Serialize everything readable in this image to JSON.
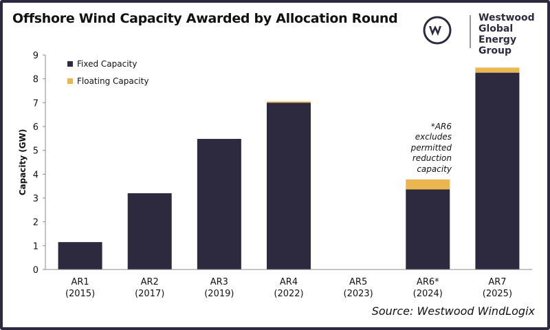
{
  "title": "Offshore Wind Capacity Awarded by Allocation Round",
  "logo": {
    "line1": "Westwood",
    "line2": "Global Energy",
    "line3": "Group"
  },
  "source": "Source: Westwood WindLogix",
  "annotation": [
    "*AR6",
    "excludes",
    "permitted",
    "reduction",
    "capacity"
  ],
  "colors": {
    "fixed": "#2d2a40",
    "floating": "#ebb54f",
    "frame": "#2d2a40"
  },
  "chart_data": {
    "type": "bar",
    "stacked": true,
    "title": "Offshore Wind Capacity Awarded by Allocation Round",
    "xlabel": "",
    "ylabel": "Capacity (GW)",
    "ylim": [
      0,
      9
    ],
    "yticks": [
      0,
      1,
      2,
      3,
      4,
      5,
      6,
      7,
      8,
      9
    ],
    "grid": false,
    "legend": "top-left",
    "categories": [
      [
        "AR1",
        "(2015)"
      ],
      [
        "AR2",
        "(2017)"
      ],
      [
        "AR3",
        "(2019)"
      ],
      [
        "AR4",
        "(2022)"
      ],
      [
        "AR5",
        "(2023)"
      ],
      [
        "AR6*",
        "(2024)"
      ],
      [
        "AR7",
        "(2025)"
      ]
    ],
    "series": [
      {
        "name": "Fixed Capacity",
        "values": [
          1.15,
          3.2,
          5.48,
          7.0,
          0,
          3.36,
          8.26
        ]
      },
      {
        "name": "Floating Capacity",
        "values": [
          0,
          0,
          0,
          0.05,
          0,
          0.42,
          0.21
        ]
      }
    ]
  }
}
